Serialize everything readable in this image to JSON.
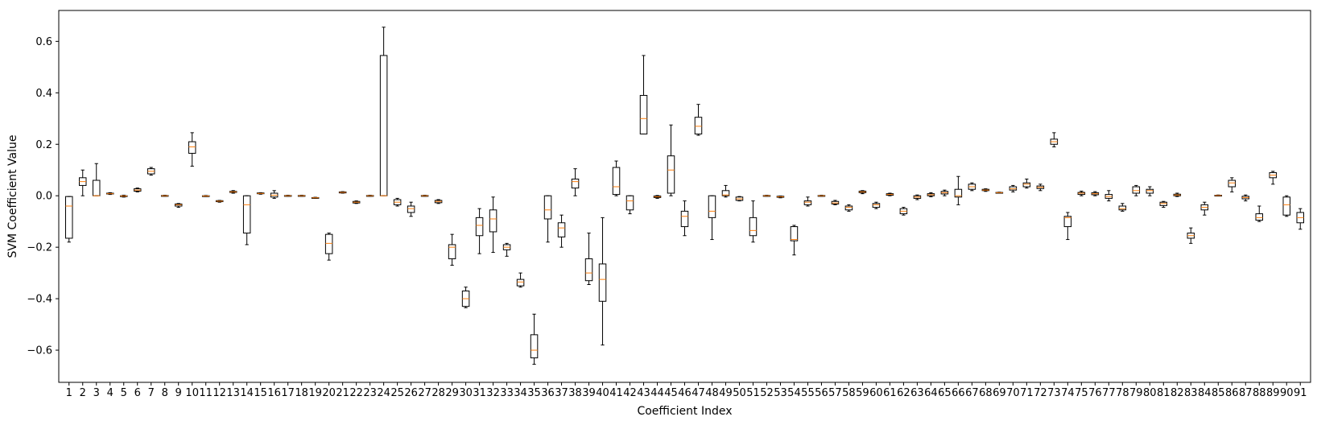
{
  "chart_data": {
    "type": "boxplot",
    "xlabel": "Coefficient Index",
    "ylabel": "SVM Coefficient Value",
    "ylim": [
      -0.725,
      0.72
    ],
    "yticks": [
      -0.6,
      -0.4,
      -0.2,
      0.0,
      0.2,
      0.4,
      0.6
    ],
    "ytick_labels": [
      "−0.6",
      "−0.4",
      "−0.2",
      "0.0",
      "0.2",
      "0.4",
      "0.6"
    ],
    "grid": false,
    "box_color": "#000000",
    "median_color": "#ff7f0e",
    "boxes": [
      {
        "label": "1",
        "whislo": -0.18,
        "q1": -0.165,
        "med": -0.04,
        "q3": -0.003,
        "whishi": -0.003
      },
      {
        "label": "2",
        "whislo": 0.0,
        "q1": 0.04,
        "med": 0.055,
        "q3": 0.07,
        "whishi": 0.1
      },
      {
        "label": "3",
        "whislo": 0.0,
        "q1": 0.0,
        "med": 0.0,
        "q3": 0.06,
        "whishi": 0.125
      },
      {
        "label": "4",
        "whislo": 0.005,
        "q1": 0.007,
        "med": 0.008,
        "q3": 0.01,
        "whishi": 0.012
      },
      {
        "label": "5",
        "whislo": -0.005,
        "q1": -0.003,
        "med": -0.001,
        "q3": 0.0,
        "whishi": 0.002
      },
      {
        "label": "6",
        "whislo": 0.015,
        "q1": 0.018,
        "med": 0.022,
        "q3": 0.027,
        "whishi": 0.03
      },
      {
        "label": "7",
        "whislo": 0.08,
        "q1": 0.085,
        "med": 0.095,
        "q3": 0.105,
        "whishi": 0.11
      },
      {
        "label": "8",
        "whislo": -0.002,
        "q1": -0.001,
        "med": 0.0,
        "q3": 0.001,
        "whishi": 0.002
      },
      {
        "label": "9",
        "whislo": -0.045,
        "q1": -0.04,
        "med": -0.035,
        "q3": -0.032,
        "whishi": -0.03
      },
      {
        "label": "10",
        "whislo": 0.115,
        "q1": 0.165,
        "med": 0.19,
        "q3": 0.21,
        "whishi": 0.245
      },
      {
        "label": "11",
        "whislo": -0.003,
        "q1": -0.002,
        "med": -0.001,
        "q3": 0.0,
        "whishi": 0.001
      },
      {
        "label": "12",
        "whislo": -0.025,
        "q1": -0.023,
        "med": -0.021,
        "q3": -0.019,
        "whishi": -0.018
      },
      {
        "label": "13",
        "whislo": 0.01,
        "q1": 0.013,
        "med": 0.015,
        "q3": 0.017,
        "whishi": 0.02
      },
      {
        "label": "14",
        "whislo": -0.19,
        "q1": -0.145,
        "med": -0.035,
        "q3": 0.0,
        "whishi": 0.0
      },
      {
        "label": "15",
        "whislo": 0.006,
        "q1": 0.008,
        "med": 0.009,
        "q3": 0.011,
        "whishi": 0.012
      },
      {
        "label": "16",
        "whislo": -0.01,
        "q1": -0.005,
        "med": 0.002,
        "q3": 0.01,
        "whishi": 0.02
      },
      {
        "label": "17",
        "whislo": -0.002,
        "q1": -0.001,
        "med": 0.0,
        "q3": 0.001,
        "whishi": 0.002
      },
      {
        "label": "18",
        "whislo": -0.002,
        "q1": -0.001,
        "med": 0.0,
        "q3": 0.001,
        "whishi": 0.002
      },
      {
        "label": "19",
        "whislo": -0.01,
        "q1": -0.009,
        "med": -0.008,
        "q3": -0.007,
        "whishi": -0.006
      },
      {
        "label": "20",
        "whislo": -0.25,
        "q1": -0.225,
        "med": -0.185,
        "q3": -0.15,
        "whishi": -0.145
      },
      {
        "label": "21",
        "whislo": 0.01,
        "q1": 0.011,
        "med": 0.013,
        "q3": 0.015,
        "whishi": 0.016
      },
      {
        "label": "22",
        "whislo": -0.03,
        "q1": -0.028,
        "med": -0.025,
        "q3": -0.022,
        "whishi": -0.02
      },
      {
        "label": "23",
        "whislo": -0.002,
        "q1": -0.001,
        "med": 0.0,
        "q3": 0.001,
        "whishi": 0.002
      },
      {
        "label": "24",
        "whislo": 0.0,
        "q1": 0.0,
        "med": 0.0,
        "q3": 0.545,
        "whishi": 0.655
      },
      {
        "label": "25",
        "whislo": -0.04,
        "q1": -0.035,
        "med": -0.025,
        "q3": -0.015,
        "whishi": -0.01
      },
      {
        "label": "26",
        "whislo": -0.08,
        "q1": -0.065,
        "med": -0.05,
        "q3": -0.04,
        "whishi": -0.025
      },
      {
        "label": "27",
        "whislo": -0.002,
        "q1": -0.001,
        "med": 0.0,
        "q3": 0.001,
        "whishi": 0.002
      },
      {
        "label": "28",
        "whislo": -0.03,
        "q1": -0.027,
        "med": -0.022,
        "q3": -0.018,
        "whishi": -0.015
      },
      {
        "label": "29",
        "whislo": -0.27,
        "q1": -0.245,
        "med": -0.2,
        "q3": -0.19,
        "whishi": -0.15
      },
      {
        "label": "30",
        "whislo": -0.435,
        "q1": -0.43,
        "med": -0.4,
        "q3": -0.37,
        "whishi": -0.355
      },
      {
        "label": "31",
        "whislo": -0.225,
        "q1": -0.155,
        "med": -0.115,
        "q3": -0.085,
        "whishi": -0.05
      },
      {
        "label": "32",
        "whislo": -0.22,
        "q1": -0.14,
        "med": -0.09,
        "q3": -0.055,
        "whishi": -0.005
      },
      {
        "label": "33",
        "whislo": -0.235,
        "q1": -0.21,
        "med": -0.2,
        "q3": -0.19,
        "whishi": -0.185
      },
      {
        "label": "34",
        "whislo": -0.355,
        "q1": -0.35,
        "med": -0.335,
        "q3": -0.325,
        "whishi": -0.3
      },
      {
        "label": "35",
        "whislo": -0.655,
        "q1": -0.63,
        "med": -0.6,
        "q3": -0.54,
        "whishi": -0.46
      },
      {
        "label": "36",
        "whislo": -0.18,
        "q1": -0.09,
        "med": -0.055,
        "q3": 0.0,
        "whishi": 0.0
      },
      {
        "label": "37",
        "whislo": -0.2,
        "q1": -0.16,
        "med": -0.125,
        "q3": -0.105,
        "whishi": -0.075
      },
      {
        "label": "38",
        "whislo": 0.0,
        "q1": 0.03,
        "med": 0.055,
        "q3": 0.065,
        "whishi": 0.105
      },
      {
        "label": "39",
        "whislo": -0.345,
        "q1": -0.33,
        "med": -0.3,
        "q3": -0.245,
        "whishi": -0.145
      },
      {
        "label": "40",
        "whislo": -0.58,
        "q1": -0.41,
        "med": -0.325,
        "q3": -0.265,
        "whishi": -0.085
      },
      {
        "label": "41",
        "whislo": 0.0,
        "q1": 0.005,
        "med": 0.035,
        "q3": 0.11,
        "whishi": 0.135
      },
      {
        "label": "42",
        "whislo": -0.07,
        "q1": -0.055,
        "med": -0.02,
        "q3": 0.0,
        "whishi": 0.0
      },
      {
        "label": "43",
        "whislo": 0.24,
        "q1": 0.24,
        "med": 0.3,
        "q3": 0.39,
        "whishi": 0.545
      },
      {
        "label": "44",
        "whislo": -0.01,
        "q1": -0.007,
        "med": -0.004,
        "q3": -0.001,
        "whishi": 0.001
      },
      {
        "label": "45",
        "whislo": 0.0,
        "q1": 0.01,
        "med": 0.1,
        "q3": 0.155,
        "whishi": 0.275
      },
      {
        "label": "46",
        "whislo": -0.155,
        "q1": -0.12,
        "med": -0.08,
        "q3": -0.06,
        "whishi": -0.02
      },
      {
        "label": "47",
        "whislo": 0.235,
        "q1": 0.24,
        "med": 0.27,
        "q3": 0.305,
        "whishi": 0.355
      },
      {
        "label": "48",
        "whislo": -0.17,
        "q1": -0.085,
        "med": -0.06,
        "q3": 0.0,
        "whishi": 0.0
      },
      {
        "label": "49",
        "whislo": -0.005,
        "q1": 0.0,
        "med": 0.003,
        "q3": 0.02,
        "whishi": 0.04
      },
      {
        "label": "50",
        "whislo": -0.02,
        "q1": -0.018,
        "med": -0.012,
        "q3": -0.005,
        "whishi": -0.003
      },
      {
        "label": "51",
        "whislo": -0.18,
        "q1": -0.155,
        "med": -0.135,
        "q3": -0.085,
        "whishi": -0.02
      },
      {
        "label": "52",
        "whislo": -0.002,
        "q1": -0.001,
        "med": 0.0,
        "q3": 0.001,
        "whishi": 0.002
      },
      {
        "label": "53",
        "whislo": -0.008,
        "q1": -0.006,
        "med": -0.004,
        "q3": -0.002,
        "whishi": -0.001
      },
      {
        "label": "54",
        "whislo": -0.23,
        "q1": -0.175,
        "med": -0.17,
        "q3": -0.12,
        "whishi": -0.115
      },
      {
        "label": "55",
        "whislo": -0.04,
        "q1": -0.035,
        "med": -0.025,
        "q3": -0.02,
        "whishi": -0.005
      },
      {
        "label": "56",
        "whislo": -0.002,
        "q1": -0.001,
        "med": 0.0,
        "q3": 0.001,
        "whishi": 0.002
      },
      {
        "label": "57",
        "whislo": -0.035,
        "q1": -0.032,
        "med": -0.028,
        "q3": -0.022,
        "whishi": -0.018
      },
      {
        "label": "58",
        "whislo": -0.06,
        "q1": -0.055,
        "med": -0.045,
        "q3": -0.04,
        "whishi": -0.035
      },
      {
        "label": "59",
        "whislo": 0.008,
        "q1": 0.012,
        "med": 0.015,
        "q3": 0.018,
        "whishi": 0.02
      },
      {
        "label": "60",
        "whislo": -0.05,
        "q1": -0.045,
        "med": -0.035,
        "q3": -0.03,
        "whishi": -0.025
      },
      {
        "label": "61",
        "whislo": 0.0,
        "q1": 0.002,
        "med": 0.005,
        "q3": 0.008,
        "whishi": 0.01
      },
      {
        "label": "62",
        "whislo": -0.075,
        "q1": -0.07,
        "med": -0.06,
        "q3": -0.05,
        "whishi": -0.045
      },
      {
        "label": "63",
        "whislo": -0.015,
        "q1": -0.01,
        "med": -0.005,
        "q3": 0.0,
        "whishi": 0.003
      },
      {
        "label": "64",
        "whislo": -0.004,
        "q1": 0.0,
        "med": 0.004,
        "q3": 0.008,
        "whishi": 0.012
      },
      {
        "label": "65",
        "whislo": 0.0,
        "q1": 0.007,
        "med": 0.012,
        "q3": 0.017,
        "whishi": 0.022
      },
      {
        "label": "66",
        "whislo": -0.035,
        "q1": -0.005,
        "med": 0.0,
        "q3": 0.025,
        "whishi": 0.075
      },
      {
        "label": "67",
        "whislo": 0.02,
        "q1": 0.025,
        "med": 0.035,
        "q3": 0.045,
        "whishi": 0.05
      },
      {
        "label": "68",
        "whislo": 0.017,
        "q1": 0.02,
        "med": 0.022,
        "q3": 0.025,
        "whishi": 0.027
      },
      {
        "label": "69",
        "whislo": 0.01,
        "q1": 0.011,
        "med": 0.012,
        "q3": 0.013,
        "whishi": 0.014
      },
      {
        "label": "70",
        "whislo": 0.015,
        "q1": 0.022,
        "med": 0.027,
        "q3": 0.035,
        "whishi": 0.04
      },
      {
        "label": "71",
        "whislo": 0.03,
        "q1": 0.035,
        "med": 0.045,
        "q3": 0.05,
        "whishi": 0.065
      },
      {
        "label": "72",
        "whislo": 0.02,
        "q1": 0.028,
        "med": 0.033,
        "q3": 0.038,
        "whishi": 0.045
      },
      {
        "label": "73",
        "whislo": 0.19,
        "q1": 0.2,
        "med": 0.21,
        "q3": 0.22,
        "whishi": 0.245
      },
      {
        "label": "74",
        "whislo": -0.17,
        "q1": -0.12,
        "med": -0.085,
        "q3": -0.08,
        "whishi": -0.065
      },
      {
        "label": "75",
        "whislo": 0.0,
        "q1": 0.005,
        "med": 0.01,
        "q3": 0.013,
        "whishi": 0.018
      },
      {
        "label": "76",
        "whislo": 0.0,
        "q1": 0.004,
        "med": 0.008,
        "q3": 0.012,
        "whishi": 0.016
      },
      {
        "label": "77",
        "whislo": -0.02,
        "q1": -0.01,
        "med": -0.003,
        "q3": 0.005,
        "whishi": 0.02
      },
      {
        "label": "78",
        "whislo": -0.06,
        "q1": -0.055,
        "med": -0.05,
        "q3": -0.04,
        "whishi": -0.03
      },
      {
        "label": "79",
        "whislo": 0.0,
        "q1": 0.01,
        "med": 0.02,
        "q3": 0.035,
        "whishi": 0.04
      },
      {
        "label": "80",
        "whislo": 0.0,
        "q1": 0.01,
        "med": 0.02,
        "q3": 0.025,
        "whishi": 0.035
      },
      {
        "label": "81",
        "whislo": -0.045,
        "q1": -0.038,
        "med": -0.03,
        "q3": -0.025,
        "whishi": -0.022
      },
      {
        "label": "82",
        "whislo": -0.003,
        "q1": 0.0,
        "med": 0.003,
        "q3": 0.006,
        "whishi": 0.01
      },
      {
        "label": "83",
        "whislo": -0.185,
        "q1": -0.165,
        "med": -0.155,
        "q3": -0.145,
        "whishi": -0.125
      },
      {
        "label": "84",
        "whislo": -0.075,
        "q1": -0.055,
        "med": -0.045,
        "q3": -0.035,
        "whishi": -0.025
      },
      {
        "label": "85",
        "whislo": -0.001,
        "q1": 0.0,
        "med": 0.001,
        "q3": 0.002,
        "whishi": 0.003
      },
      {
        "label": "86",
        "whislo": 0.015,
        "q1": 0.035,
        "med": 0.05,
        "q3": 0.06,
        "whishi": 0.07
      },
      {
        "label": "87",
        "whislo": -0.02,
        "q1": -0.012,
        "med": -0.007,
        "q3": -0.002,
        "whishi": 0.003
      },
      {
        "label": "88",
        "whislo": -0.1,
        "q1": -0.095,
        "med": -0.085,
        "q3": -0.07,
        "whishi": -0.04
      },
      {
        "label": "89",
        "whislo": 0.045,
        "q1": 0.07,
        "med": 0.08,
        "q3": 0.09,
        "whishi": 0.095
      },
      {
        "label": "90",
        "whislo": -0.08,
        "q1": -0.075,
        "med": -0.035,
        "q3": -0.005,
        "whishi": 0.0
      },
      {
        "label": "91",
        "whislo": -0.13,
        "q1": -0.105,
        "med": -0.085,
        "q3": -0.065,
        "whishi": -0.05
      }
    ]
  }
}
